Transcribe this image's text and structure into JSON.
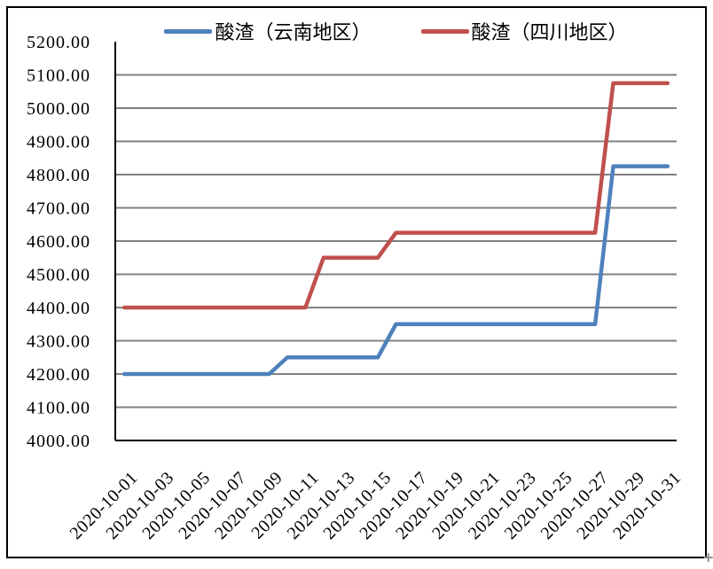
{
  "legend": {
    "items": [
      {
        "id": "yunnan",
        "label": "酸渣（云南地区）",
        "color": "#4F81BD"
      },
      {
        "id": "sichuan",
        "label": "酸渣（四川地区）",
        "color": "#C0504D"
      }
    ]
  },
  "chart_data": {
    "type": "line",
    "title": "",
    "xlabel": "",
    "ylabel": "",
    "grid": true,
    "grid_color": "#808080",
    "axis_color": "#000000",
    "legend_position": "top",
    "ylim": [
      4000,
      5200
    ],
    "y_tick_labels": [
      "4000.00",
      "4100.00",
      "4200.00",
      "4300.00",
      "4400.00",
      "4500.00",
      "4600.00",
      "4700.00",
      "4800.00",
      "4900.00",
      "5000.00",
      "5100.00",
      "5200.00"
    ],
    "x_tick_every": 2,
    "x": [
      "2020-10-01",
      "2020-10-02",
      "2020-10-03",
      "2020-10-04",
      "2020-10-05",
      "2020-10-06",
      "2020-10-07",
      "2020-10-08",
      "2020-10-09",
      "2020-10-10",
      "2020-10-11",
      "2020-10-12",
      "2020-10-13",
      "2020-10-14",
      "2020-10-15",
      "2020-10-16",
      "2020-10-17",
      "2020-10-18",
      "2020-10-19",
      "2020-10-20",
      "2020-10-21",
      "2020-10-22",
      "2020-10-23",
      "2020-10-24",
      "2020-10-25",
      "2020-10-26",
      "2020-10-27",
      "2020-10-28",
      "2020-10-29",
      "2020-10-30",
      "2020-10-31"
    ],
    "series": [
      {
        "id": "yunnan",
        "name": "酸渣（云南地区）",
        "color": "#4F81BD",
        "values": [
          4200,
          4200,
          4200,
          4200,
          4200,
          4200,
          4200,
          4200,
          4200,
          4250,
          4250,
          4250,
          4250,
          4250,
          4250,
          4350,
          4350,
          4350,
          4350,
          4350,
          4350,
          4350,
          4350,
          4350,
          4350,
          4350,
          4350,
          4825,
          4825,
          4825,
          4825
        ]
      },
      {
        "id": "sichuan",
        "name": "酸渣（四川地区）",
        "color": "#C0504D",
        "values": [
          4400,
          4400,
          4400,
          4400,
          4400,
          4400,
          4400,
          4400,
          4400,
          4400,
          4400,
          4550,
          4550,
          4550,
          4550,
          4625,
          4625,
          4625,
          4625,
          4625,
          4625,
          4625,
          4625,
          4625,
          4625,
          4625,
          4625,
          5075,
          5075,
          5075,
          5075
        ]
      }
    ]
  },
  "artifacts": {
    "cursor_plus": "+"
  }
}
